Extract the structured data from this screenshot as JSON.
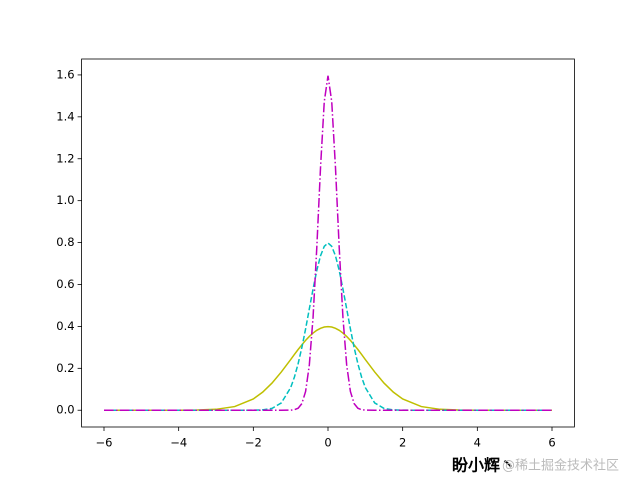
{
  "chart_data": {
    "type": "line",
    "x": [
      -6,
      -5,
      -4,
      -3.5,
      -3,
      -2.5,
      -2,
      -1.75,
      -1.5,
      -1.25,
      -1,
      -0.9,
      -0.8,
      -0.7,
      -0.6,
      -0.5,
      -0.4,
      -0.3,
      -0.2,
      -0.1,
      0,
      0.1,
      0.2,
      0.3,
      0.4,
      0.5,
      0.6,
      0.7,
      0.8,
      0.9,
      1,
      1.25,
      1.5,
      1.75,
      2,
      2.5,
      3,
      3.5,
      4,
      5,
      6
    ],
    "series": [
      {
        "color": "#bfbf00",
        "linestyle": "solid",
        "values": [
          0,
          0,
          0.0001,
          0.0009,
          0.0044,
          0.0175,
          0.054,
          0.0863,
          0.1295,
          0.1826,
          0.242,
          0.2661,
          0.2897,
          0.3123,
          0.3332,
          0.3521,
          0.3683,
          0.3814,
          0.391,
          0.397,
          0.399,
          0.397,
          0.391,
          0.3814,
          0.3683,
          0.3521,
          0.3332,
          0.3123,
          0.2897,
          0.2661,
          0.242,
          0.1826,
          0.1295,
          0.0863,
          0.054,
          0.0175,
          0.0044,
          0.0009,
          0.0001,
          0,
          0
        ]
      },
      {
        "color": "#00bfbf",
        "linestyle": "dashed",
        "values": [
          0,
          0,
          0,
          0,
          0,
          0,
          0.0003,
          0.0017,
          0.0089,
          0.035,
          0.108,
          0.158,
          0.222,
          0.2995,
          0.388,
          0.484,
          0.579,
          0.667,
          0.737,
          0.782,
          0.798,
          0.782,
          0.737,
          0.667,
          0.579,
          0.484,
          0.388,
          0.2995,
          0.222,
          0.158,
          0.108,
          0.035,
          0.0089,
          0.0017,
          0.0003,
          0,
          0,
          0,
          0,
          0,
          0
        ]
      },
      {
        "color": "#bf00bf",
        "linestyle": "dashdot",
        "values": [
          0,
          0,
          0,
          0,
          0,
          0,
          0,
          0,
          0,
          0,
          0.0005,
          0.0024,
          0.0095,
          0.0317,
          0.0896,
          0.216,
          0.444,
          0.777,
          1.159,
          1.473,
          1.596,
          1.473,
          1.159,
          0.777,
          0.444,
          0.216,
          0.0896,
          0.0317,
          0.0095,
          0.0024,
          0.0005,
          0,
          0,
          0,
          0,
          0,
          0,
          0,
          0,
          0,
          0
        ]
      }
    ],
    "xlim": [
      -6.6,
      6.6
    ],
    "ylim": [
      -0.08,
      1.676
    ],
    "xticks": [
      {
        "value": -6,
        "label": "−6"
      },
      {
        "value": -4,
        "label": "−4"
      },
      {
        "value": -2,
        "label": "−2"
      },
      0,
      2,
      4,
      6
    ],
    "yticks": [
      {
        "value": 0,
        "label": "0.0"
      },
      0.2,
      0.4,
      0.6,
      0.8,
      {
        "value": 1,
        "label": "1.0"
      },
      1.2,
      1.4,
      1.6
    ],
    "watermark": [
      "盼小辉丶",
      "@稀土掘金技术社区"
    ]
  }
}
